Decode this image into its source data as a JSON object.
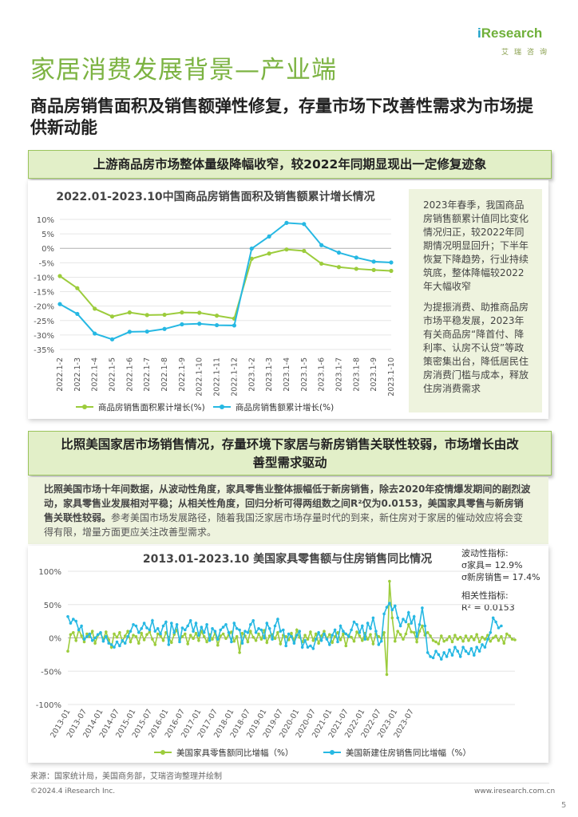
{
  "brand": {
    "name_prefix": "i",
    "name_main": "Research",
    "name_cn": "艾瑞咨询"
  },
  "colors": {
    "green": "#9ccc3c",
    "cyan": "#26b8e3",
    "accent_title": "#7cb342"
  },
  "page_title": "家居消费发展背景—产业端",
  "subtitle": "商品房销售面积及销售额弹性修复，存量市场下改善性需求为市场提供新动能",
  "section1": {
    "banner": "上游商品房市场整体量级降幅收窄，较2022年同期显现出一定修复迹象",
    "note_p1": "2023年春季，我国商品房销售额累计值同比变化情况归正，较2022年同期情况明显回升；下半年恢复下降趋势，行业持续筑底，整体降幅较2022年大幅收窄",
    "note_p2": "为提振消费、助推商品房市场平稳发展，2023年有关商品房“降首付、降利率、认房不认贷”等政策密集出台，降低居民住房消费门槛与成本，释放住房消费需求"
  },
  "section2": {
    "banner_line1": "比照美国家居市场销售情况，存量环境下家居与新房销售关联性较弱，市场增长由改",
    "banner_line2": "善型需求驱动",
    "desc_bold": "比照美国市场十年间数据，从波动性角度，家具零售业整体振幅低于新房销售，除去2020年疫情爆发期间的剧烈波动，家具零售业发展相对平稳；从相关性角度，回归分析可得两组数之间R²仅为0.0153，美国家具零售与新房销售关联性较弱。",
    "desc_rest": "参考美国市场发展路径，随着我国泛家居市场存量时代的到来，新住房对于家居的催动效应将会变得有限，增量方面更应关注改善型需求。",
    "stats": {
      "vol_label": "波动性指标:",
      "vol_furniture": "σ家具= 12.9%",
      "vol_housing": "σ新房销售= 17.4%",
      "corr_label": "相关性指标:",
      "corr_value": "R² = 0.0153"
    }
  },
  "footer": {
    "source": "来源：国家统计局，美国商务部，艾瑞咨询整理并绘制",
    "copyright": "©2024.4 iResearch Inc.",
    "url": "www.iresearch.com.cn",
    "page_number": "5"
  },
  "chart_data": [
    {
      "type": "line",
      "title": "2022.01-2023.10中国商品房销售面积及销售额累计增长情况",
      "categories": [
        "2022.1-2",
        "2022.1-3",
        "2022.1-4",
        "2022.1-5",
        "2022.1-6",
        "2022.1-7",
        "2022.1-8",
        "2022.1-9",
        "2022.1-10",
        "2022.1-11",
        "2022.1-12",
        "2023.1-2",
        "2023.1-3",
        "2023.1-4",
        "2023.1-5",
        "2023.1-6",
        "2023.1-7",
        "2023.1-8",
        "2023.1-9",
        "2023.1-10"
      ],
      "ylim": [
        -35,
        10
      ],
      "yticks": [
        "10%",
        "5%",
        "0%",
        "-5%",
        "-10%",
        "-15%",
        "-20%",
        "-25%",
        "-30%",
        "-35%"
      ],
      "grid": true,
      "legend_position": "bottom",
      "series": [
        {
          "name": "商品房销售面积累计增长(%)",
          "color": "#9ccc3c",
          "values": [
            -9.6,
            -13.8,
            -20.9,
            -23.6,
            -22.2,
            -23.1,
            -23.0,
            -22.2,
            -22.3,
            -23.3,
            -24.3,
            -3.6,
            -1.8,
            -0.4,
            -0.9,
            -5.3,
            -6.5,
            -7.1,
            -7.5,
            -7.8
          ]
        },
        {
          "name": "商品房销售额累计增长(%)",
          "color": "#26b8e3",
          "values": [
            -19.3,
            -22.7,
            -29.5,
            -31.5,
            -28.9,
            -28.8,
            -27.9,
            -26.3,
            -26.1,
            -26.6,
            -26.7,
            -0.1,
            4.1,
            8.8,
            8.4,
            1.1,
            -1.5,
            -3.2,
            -4.6,
            -4.9
          ]
        }
      ]
    },
    {
      "type": "line",
      "title": "2013.01-2023.10 美国家具零售额与住房销售同比情况",
      "x_tick_labels": [
        "2013-01",
        "2013-07",
        "2014-01",
        "2014-07",
        "2015-01",
        "2015-07",
        "2016-01",
        "2016-07",
        "2017-01",
        "2017-07",
        "2018-01",
        "2018-07",
        "2019-01",
        "2019-07",
        "2020-01",
        "2020-07",
        "2021-01",
        "2021-07",
        "2022-01",
        "2022-07",
        "2023-01",
        "2023-07"
      ],
      "x_start": "2013-01",
      "ylim": [
        -100,
        100
      ],
      "yticks": [
        "100%",
        "50%",
        "0%",
        "-50%",
        "-100%"
      ],
      "grid": true,
      "legend_position": "bottom",
      "series": [
        {
          "name": "美国家具零售额同比增幅（%）",
          "color": "#9ccc3c",
          "values": [
            -20,
            5,
            8,
            -4,
            12,
            3,
            -6,
            6,
            2,
            10,
            -8,
            4,
            7,
            -2,
            9,
            -3,
            -14,
            6,
            1,
            8,
            -5,
            3,
            10,
            -6,
            4,
            2,
            -8,
            7,
            -3,
            5,
            9,
            -2,
            -10,
            6,
            3,
            -4,
            8,
            1,
            -7,
            5,
            12,
            -3,
            2,
            6,
            -9,
            4,
            -1,
            7,
            -4,
            10,
            2,
            -6,
            5,
            -2,
            8,
            -11,
            3,
            6,
            -1,
            4,
            9,
            -5,
            2,
            -22,
            7,
            3,
            -6,
            10,
            1,
            -4,
            6,
            -2,
            11,
            -7,
            3,
            5,
            -1,
            8,
            -9,
            4,
            2,
            -3,
            7,
            -5,
            12,
            1,
            -6,
            4,
            -2,
            9,
            -4,
            6,
            -8,
            3,
            10,
            -1,
            5,
            -7,
            2,
            8,
            -3,
            6,
            -12,
            4,
            1,
            -5,
            9,
            3,
            -4,
            7,
            -2,
            5,
            -9,
            6,
            2,
            -1,
            8,
            -55,
            85,
            30,
            -5,
            10,
            5,
            -2,
            6,
            20,
            9,
            8,
            -6,
            10,
            18,
            4,
            8,
            3,
            -4,
            -6,
            -9,
            3,
            -5,
            -3,
            2,
            -6,
            4,
            -2,
            1,
            -5,
            3,
            -4,
            2,
            -3,
            5,
            -6,
            1,
            -2,
            4,
            -5,
            0,
            3,
            -4,
            2,
            -8,
            6,
            3,
            -2,
            -3
          ]
        },
        {
          "name": "美国新建住房销售同比增幅（%）",
          "color": "#26b8e3",
          "values": [
            32,
            22,
            28,
            25,
            12,
            18,
            -2,
            2,
            6,
            -4,
            0,
            5,
            8,
            -5,
            2,
            -8,
            -10,
            -14,
            -6,
            -12,
            -4,
            -8,
            2,
            10,
            20,
            18,
            8,
            14,
            22,
            15,
            12,
            26,
            10,
            14,
            6,
            18,
            24,
            -10,
            22,
            8,
            20,
            -6,
            15,
            12,
            18,
            26,
            10,
            22,
            4,
            16,
            8,
            20,
            -4,
            14,
            10,
            -2,
            12,
            16,
            20,
            8,
            -6,
            22,
            14,
            12,
            -8,
            10,
            8,
            20,
            26,
            8,
            14,
            12,
            0,
            22,
            14,
            -2,
            18,
            28,
            10,
            12,
            -12,
            6,
            2,
            -8,
            4,
            10,
            -14,
            -4,
            -14,
            -12,
            -16,
            -2,
            8,
            -4,
            6,
            -2,
            -10,
            4,
            12,
            -6,
            18,
            10,
            6,
            2,
            12,
            24,
            20,
            8,
            18,
            -2,
            22,
            14,
            30,
            10,
            -10,
            -5,
            36,
            46,
            52,
            42,
            48,
            30,
            18,
            28,
            24,
            38,
            22,
            32,
            2,
            20,
            45,
            18,
            -22,
            -28,
            -30,
            -20,
            -25,
            -32,
            -22,
            -28,
            -18,
            -26,
            -14,
            -20,
            -28,
            -14,
            -20,
            -24,
            -16,
            -26,
            -14,
            -20,
            -10,
            -14,
            -2,
            8,
            30,
            24,
            15,
            18
          ]
        }
      ]
    }
  ]
}
